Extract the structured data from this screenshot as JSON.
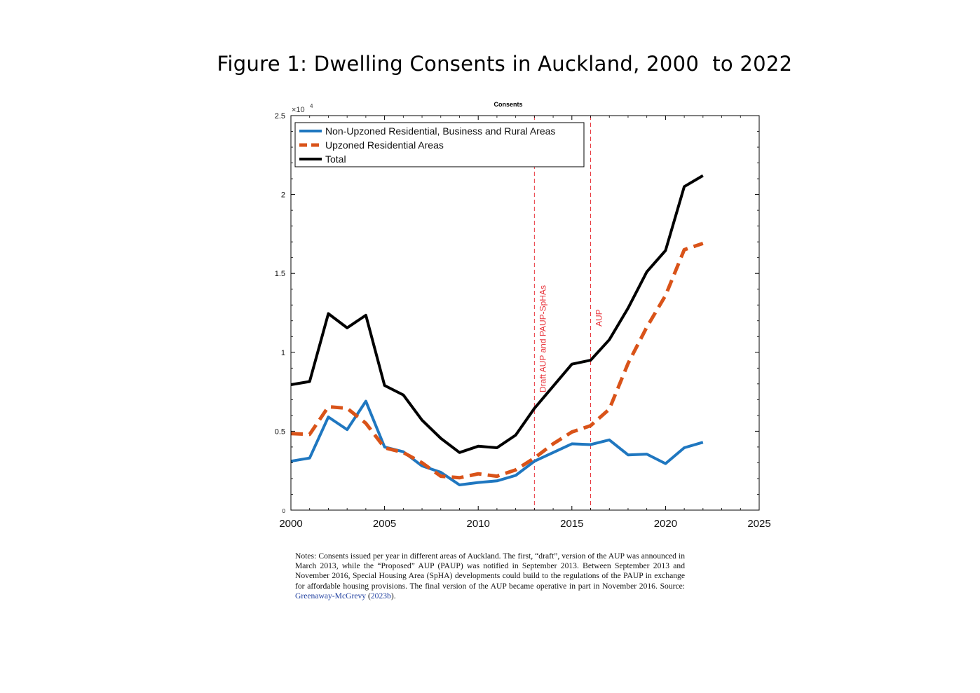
{
  "figure": {
    "title": "Figure 1: Dwelling Consents in Auckland, 2000  to 2022"
  },
  "chart_data": {
    "type": "line",
    "title": "Consents",
    "xlabel": "",
    "ylabel": "",
    "y_multiplier_label": "×10",
    "y_multiplier_exponent": "4",
    "xlim": [
      2000,
      2025
    ],
    "ylim": [
      0,
      25000
    ],
    "x_ticks": [
      2000,
      2005,
      2010,
      2015,
      2020,
      2025
    ],
    "x_tick_labels": [
      "2000",
      "2005",
      "2010",
      "2015",
      "2020",
      "2025"
    ],
    "y_ticks": [
      0,
      5000,
      10000,
      15000,
      20000,
      25000
    ],
    "y_tick_labels": [
      "0",
      "0.5",
      "1",
      "1.5",
      "2",
      "2.5"
    ],
    "grid": false,
    "legend_position": "top-left",
    "x": [
      2000,
      2001,
      2002,
      2003,
      2004,
      2005,
      2006,
      2007,
      2008,
      2009,
      2010,
      2011,
      2012,
      2013,
      2014,
      2015,
      2016,
      2017,
      2018,
      2019,
      2020,
      2021,
      2022
    ],
    "series": [
      {
        "name": "Non-Upzoned Residential, Business and Rural Areas",
        "color": "#1f77c0",
        "style": "solid",
        "values": [
          3100,
          3300,
          5900,
          5100,
          6900,
          4000,
          3700,
          2800,
          2400,
          1600,
          1750,
          1850,
          2200,
          3100,
          3650,
          4200,
          4150,
          4450,
          3500,
          3550,
          2950,
          3950,
          4300
        ]
      },
      {
        "name": "Upzoned Residential Areas",
        "color": "#d95319",
        "style": "dashed",
        "values": [
          4850,
          4800,
          6550,
          6450,
          5500,
          3950,
          3650,
          3000,
          2150,
          2050,
          2300,
          2150,
          2550,
          3300,
          4200,
          4950,
          5350,
          6400,
          9300,
          11600,
          13600,
          16500,
          16900
        ]
      },
      {
        "name": "Total",
        "color": "#000000",
        "style": "solid",
        "values": [
          7950,
          8150,
          12450,
          11550,
          12350,
          7900,
          7300,
          5700,
          4550,
          3650,
          4050,
          3950,
          4750,
          6450,
          7850,
          9250,
          9500,
          10800,
          12800,
          15100,
          16450,
          20500,
          21200
        ]
      }
    ],
    "annotations": [
      {
        "x": 2013,
        "text": "Draft AUP and PAUP-SpHAs",
        "color": "#e8363d"
      },
      {
        "x": 2016,
        "text": "AUP",
        "color": "#e8363d"
      }
    ]
  },
  "notes": {
    "text": "Notes: Consents issued per year in different areas of Auckland. The first, “draft”, version of the AUP was announced in March 2013, while the “Proposed” AUP (PAUP) was notified in September 2013. Between September 2013 and November 2016, Special Housing Area (SpHA) developments could build to the regulations of the PAUP in exchange for affordable housing provisions. The final version of the AUP became operative in part in November 2016. Source: ",
    "source_author": "Greenaway-McGrevy",
    "source_open": " (",
    "source_year": "2023b",
    "source_close": ")."
  }
}
